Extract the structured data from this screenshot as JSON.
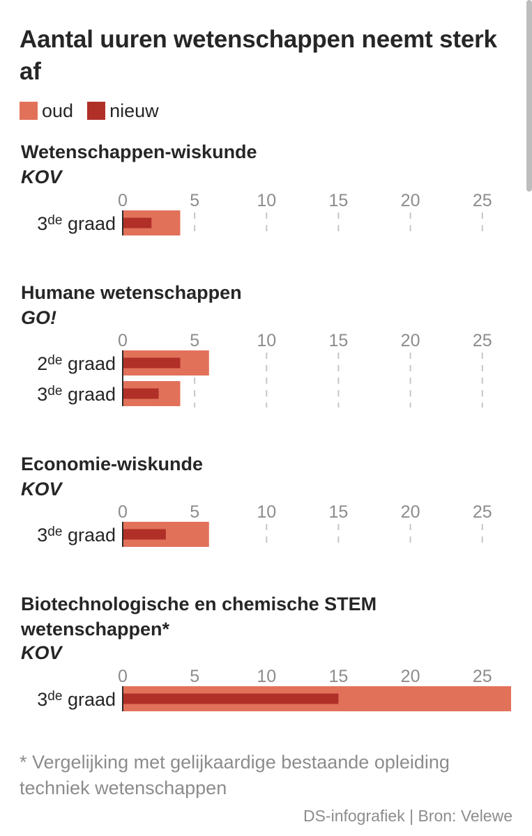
{
  "title": "Aantal uuren wetenschappen neemt sterk af",
  "legend": [
    {
      "label": "oud",
      "color": "#e2715a"
    },
    {
      "label": "nieuw",
      "color": "#b03028"
    }
  ],
  "colors": {
    "oud": "#e2715a",
    "nieuw": "#b03028",
    "axis": "#2b2b2b",
    "grid": "#c6c6c6",
    "tick": "#8c8c8c"
  },
  "chart_data": [
    {
      "type": "bar",
      "orientation": "horizontal",
      "title": "Wetenschappen-wiskunde",
      "subtitle": "KOV",
      "categories": [
        {
          "num": "3",
          "sup": "de",
          "word": "graad"
        }
      ],
      "series": [
        {
          "name": "oud",
          "values": [
            4
          ]
        },
        {
          "name": "nieuw",
          "values": [
            2
          ]
        }
      ],
      "xlim": [
        0,
        27
      ],
      "ticks": [
        "0",
        "5",
        "10",
        "15",
        "20",
        "25"
      ],
      "grid": true,
      "legend": "top-left"
    },
    {
      "type": "bar",
      "orientation": "horizontal",
      "title": "Humane wetenschappen",
      "subtitle": "GO!",
      "categories": [
        {
          "num": "2",
          "sup": "de",
          "word": "graad"
        },
        {
          "num": "3",
          "sup": "de",
          "word": "graad"
        }
      ],
      "series": [
        {
          "name": "oud",
          "values": [
            6,
            4
          ]
        },
        {
          "name": "nieuw",
          "values": [
            4,
            2.5
          ]
        }
      ],
      "xlim": [
        0,
        27
      ],
      "ticks": [
        "0",
        "5",
        "10",
        "15",
        "20",
        "25"
      ],
      "grid": true,
      "legend": "top-left"
    },
    {
      "type": "bar",
      "orientation": "horizontal",
      "title": "Economie-wiskunde",
      "subtitle": "KOV",
      "categories": [
        {
          "num": "3",
          "sup": "de",
          "word": "graad"
        }
      ],
      "series": [
        {
          "name": "oud",
          "values": [
            6
          ]
        },
        {
          "name": "nieuw",
          "values": [
            3
          ]
        }
      ],
      "xlim": [
        0,
        27
      ],
      "ticks": [
        "0",
        "5",
        "10",
        "15",
        "20",
        "25"
      ],
      "grid": true,
      "legend": "top-left"
    },
    {
      "type": "bar",
      "orientation": "horizontal",
      "title": "Biotechnologische en chemische STEM wetenschappen*",
      "subtitle": "KOV",
      "categories": [
        {
          "num": "3",
          "sup": "de",
          "word": "graad"
        }
      ],
      "series": [
        {
          "name": "oud",
          "values": [
            27
          ]
        },
        {
          "name": "nieuw",
          "values": [
            15
          ]
        }
      ],
      "xlim": [
        0,
        27
      ],
      "ticks": [
        "0",
        "5",
        "10",
        "15",
        "20",
        "25"
      ],
      "grid": true,
      "legend": "top-left"
    }
  ],
  "footnote": "* Vergelijking met gelijkaardige bestaande opleiding techniek wetenschappen",
  "source": "DS-infografiek | Bron: Velewe"
}
